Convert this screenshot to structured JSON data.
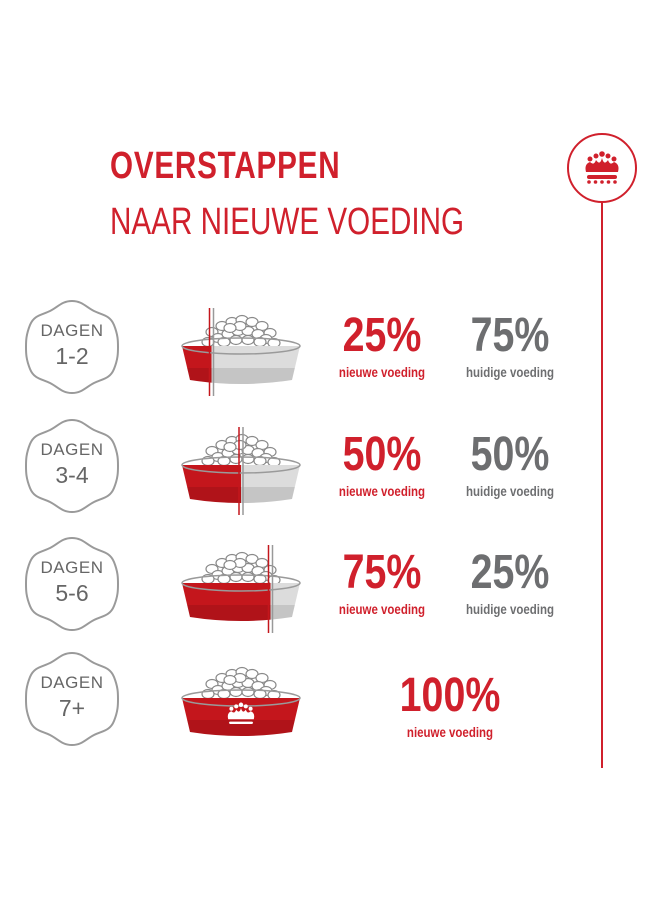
{
  "header": {
    "title_line1": "OVERSTAPPEN",
    "title_line2": "NAAR NIEUWE VOEDING"
  },
  "colors": {
    "brand_red": "#d0202c",
    "grey_text": "#6d6e70",
    "bowl_grey": "#dcdcdc"
  },
  "icons": {
    "timeline_top": "crown-icon",
    "bowl_logo": "crown-icon"
  },
  "steps": [
    {
      "days_label": "DAGEN",
      "days_range": "1-2",
      "new_pct": "25%",
      "new_label": "nieuwe voeding",
      "current_pct": "75%",
      "current_label": "huidige voeding",
      "new_share": 0.25
    },
    {
      "days_label": "DAGEN",
      "days_range": "3-4",
      "new_pct": "50%",
      "new_label": "nieuwe voeding",
      "current_pct": "50%",
      "current_label": "huidige voeding",
      "new_share": 0.5
    },
    {
      "days_label": "DAGEN",
      "days_range": "5-6",
      "new_pct": "75%",
      "new_label": "nieuwe voeding",
      "current_pct": "25%",
      "current_label": "huidige voeding",
      "new_share": 0.75
    },
    {
      "days_label": "DAGEN",
      "days_range": "7+",
      "new_pct": "100%",
      "new_label": "nieuwe voeding",
      "new_share": 1.0
    }
  ]
}
